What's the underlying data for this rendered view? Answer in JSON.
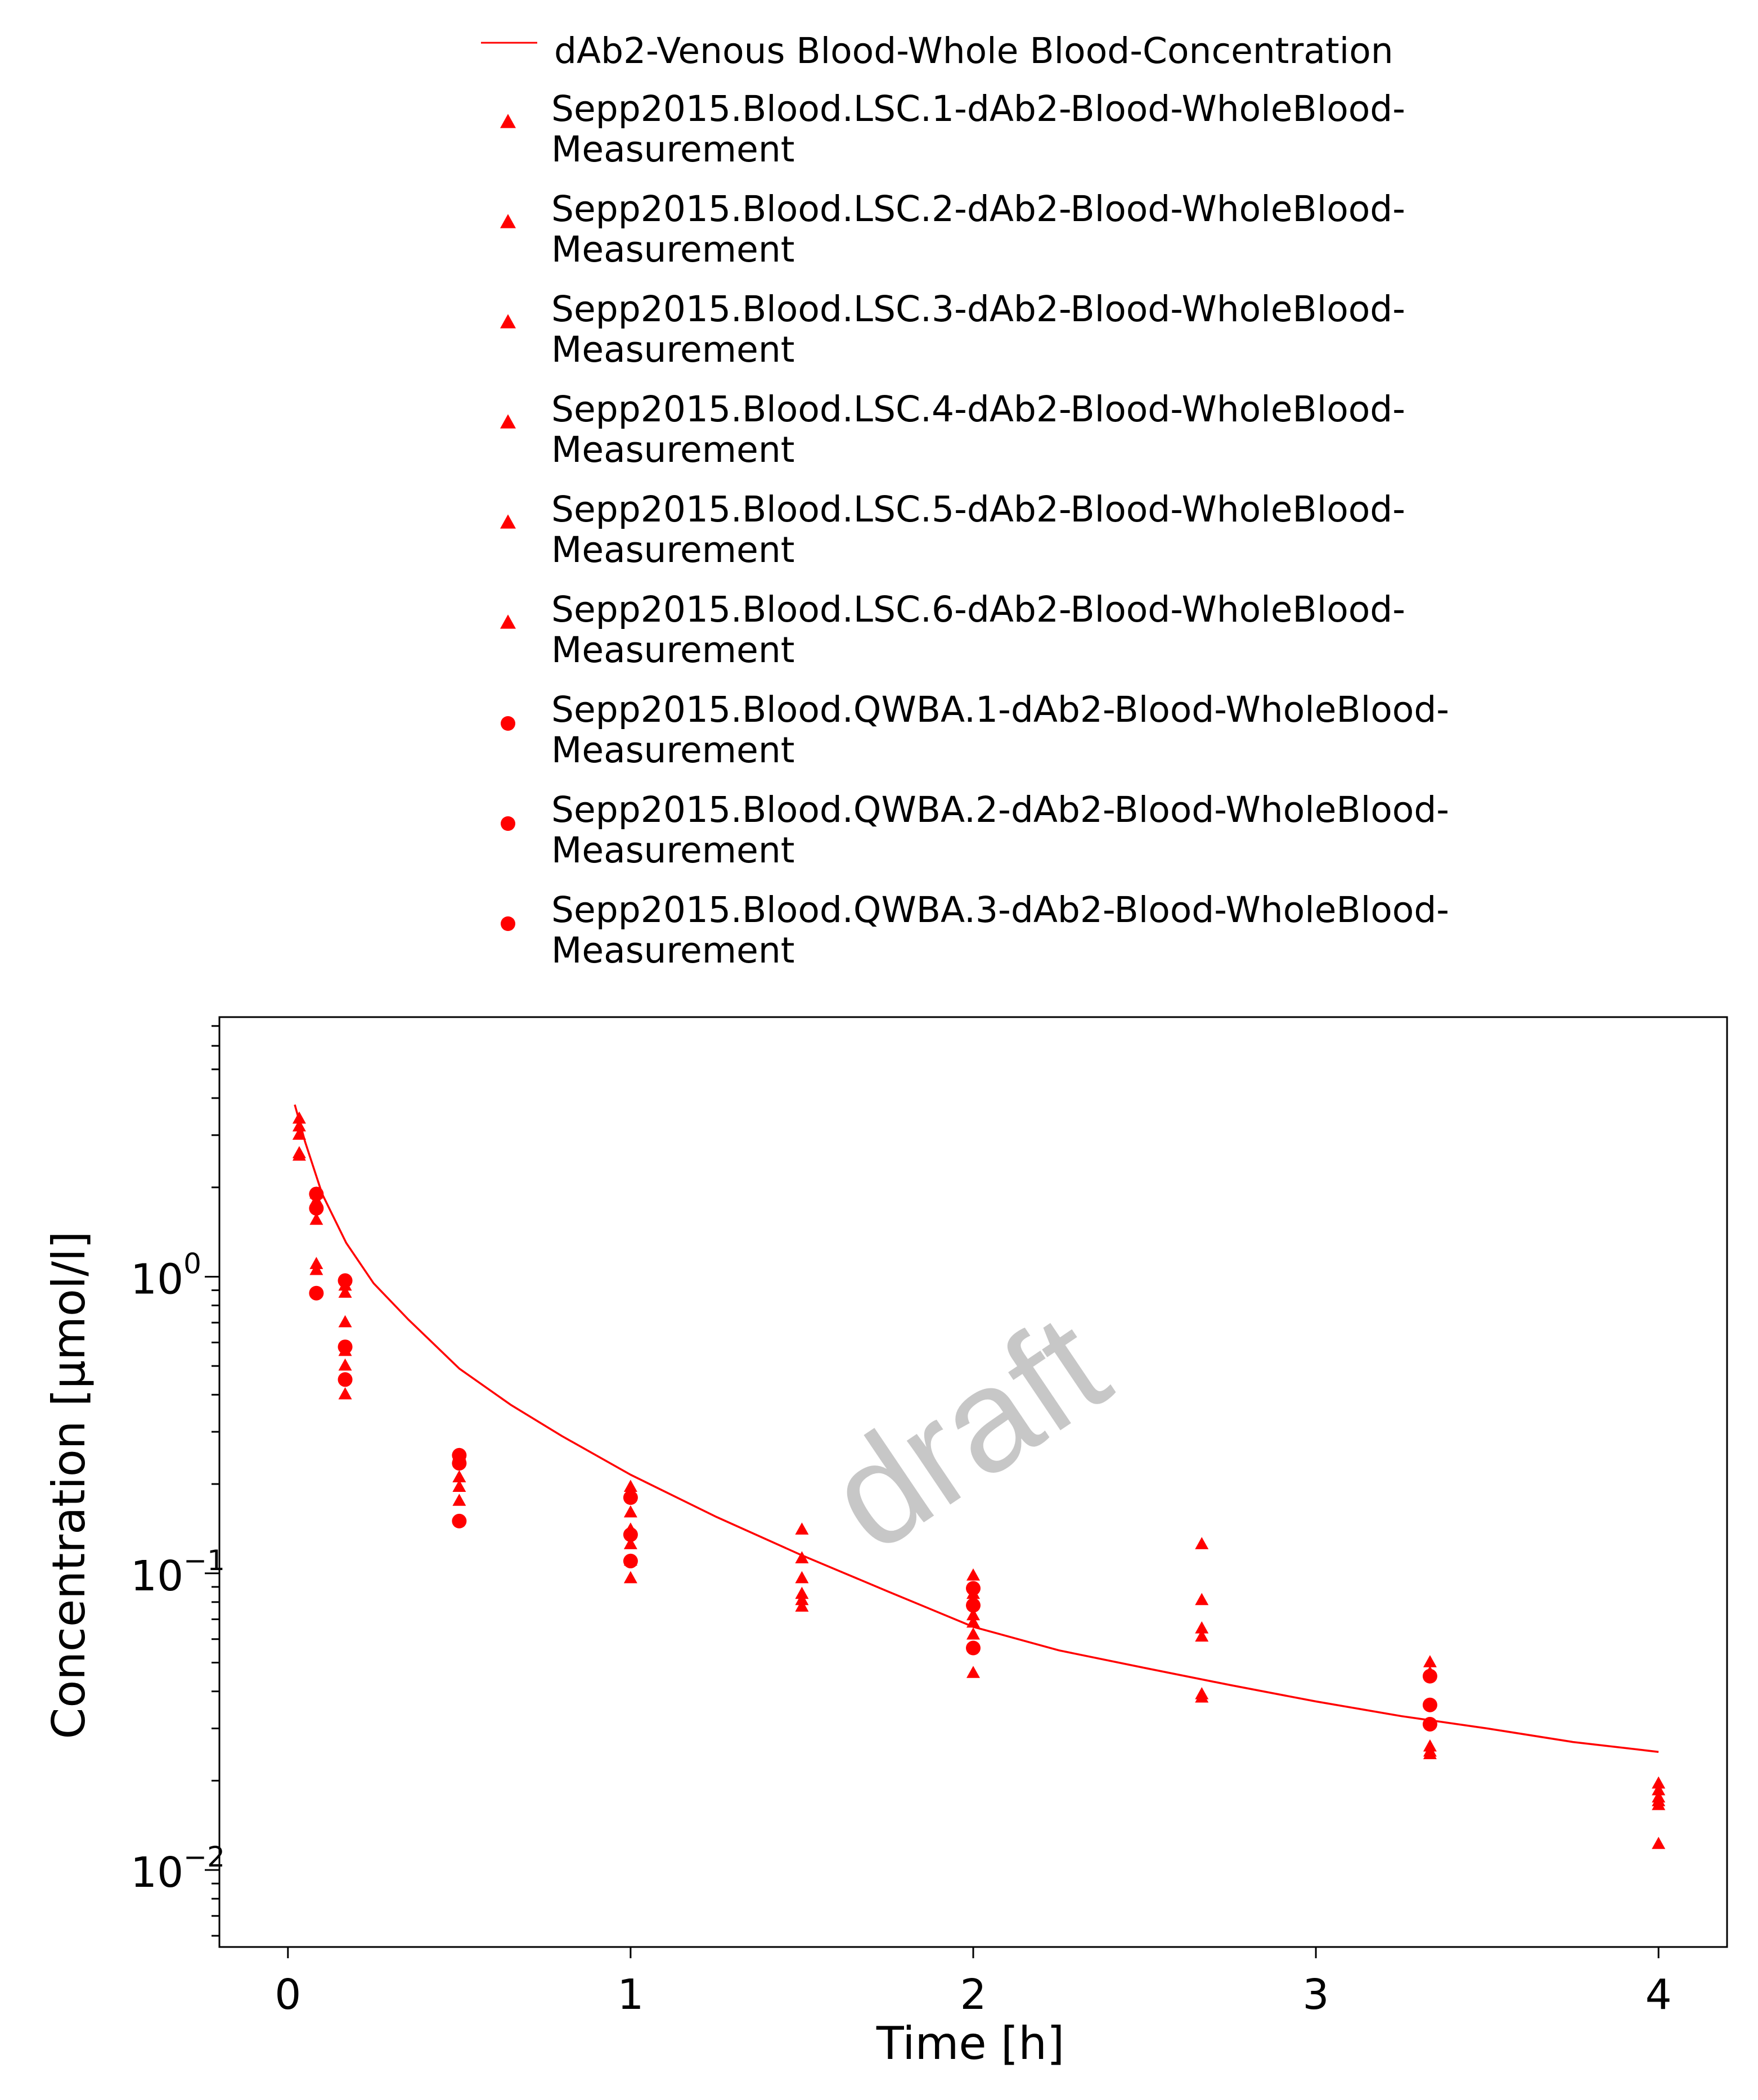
{
  "chart_data": {
    "type": "scatter",
    "title": "",
    "xlabel": "Time [h]",
    "ylabel": "Concentration [µmol/l]",
    "xlim": [
      -0.2,
      4.2
    ],
    "ylim": [
      0.0055,
      7.5
    ],
    "y_scale": "log",
    "x_ticks": [
      "0",
      "1",
      "2",
      "3",
      "4"
    ],
    "y_ticks": [
      {
        "base": "10",
        "exp": "0"
      },
      {
        "base": "10",
        "exp": "−1"
      },
      {
        "base": "10",
        "exp": "−2"
      }
    ],
    "grid": false,
    "legend_position": "top",
    "watermark": "draft",
    "color": "#ff0000",
    "series": [
      {
        "name": "dAb2-Venous Blood-Whole Blood-Concentration",
        "kind": "line",
        "x": [
          0.02,
          0.05,
          0.1,
          0.17,
          0.25,
          0.35,
          0.5,
          0.65,
          0.8,
          1.0,
          1.25,
          1.5,
          1.75,
          2.0,
          2.25,
          2.5,
          2.75,
          3.0,
          3.25,
          3.5,
          3.75,
          4.0
        ],
        "y": [
          3.8,
          2.85,
          1.9,
          1.3,
          0.95,
          0.72,
          0.49,
          0.37,
          0.29,
          0.215,
          0.155,
          0.115,
          0.087,
          0.066,
          0.055,
          0.048,
          0.042,
          0.037,
          0.033,
          0.03,
          0.027,
          0.025
        ]
      },
      {
        "name": "Sepp2015.Blood.LSC.1-dAb2-Blood-WholeBlood-Measurement",
        "kind": "triangle",
        "x": [
          0.033,
          0.083,
          0.167,
          0.5,
          1,
          1.5,
          2,
          2.667,
          3.333,
          4
        ],
        "y": [
          3.4,
          1.9,
          0.93,
          0.25,
          0.195,
          0.14,
          0.098,
          0.125,
          0.05,
          0.0195
        ]
      },
      {
        "name": "Sepp2015.Blood.LSC.2-dAb2-Blood-WholeBlood-Measurement",
        "kind": "triangle",
        "x": [
          0.033,
          0.083,
          0.167,
          0.5,
          1,
          1.5,
          2,
          2.667,
          3.333,
          4
        ],
        "y": [
          3.2,
          1.75,
          0.88,
          0.21,
          0.16,
          0.112,
          0.085,
          0.081,
          0.046,
          0.0185
        ]
      },
      {
        "name": "Sepp2015.Blood.LSC.3-dAb2-Blood-WholeBlood-Measurement",
        "kind": "triangle",
        "x": [
          0.033,
          0.083,
          0.167,
          0.5,
          1,
          1.5,
          2,
          2.667,
          3.333,
          4
        ],
        "y": [
          3.0,
          1.55,
          0.7,
          0.195,
          0.14,
          0.096,
          0.072,
          0.065,
          0.026,
          0.0175
        ]
      },
      {
        "name": "Sepp2015.Blood.LSC.4-dAb2-Blood-WholeBlood-Measurement",
        "kind": "triangle",
        "x": [
          0.033,
          0.083,
          0.167,
          0.5,
          1,
          1.5,
          2,
          2.667,
          3.333,
          4
        ],
        "y": [
          2.6,
          1.1,
          0.56,
          0.175,
          0.125,
          0.085,
          0.068,
          0.061,
          0.0245,
          0.017
        ]
      },
      {
        "name": "Sepp2015.Blood.LSC.5-dAb2-Blood-WholeBlood-Measurement",
        "kind": "triangle",
        "x": [
          0.033,
          0.083,
          0.167,
          0.5,
          1,
          1.5,
          2,
          2.667,
          3.333,
          4
        ],
        "y": [
          2.55,
          1.05,
          0.5,
          0.24,
          0.11,
          0.081,
          0.062,
          0.039,
          0.046,
          0.0165
        ]
      },
      {
        "name": "Sepp2015.Blood.LSC.6-dAb2-Blood-WholeBlood-Measurement",
        "kind": "triangle",
        "x": [
          0.033,
          0.083,
          0.167,
          0.5,
          1,
          1.5,
          2,
          2.667,
          3.333,
          4
        ],
        "y": [
          3.0,
          1.8,
          0.4,
          0.21,
          0.096,
          0.077,
          0.046,
          0.038,
          0.025,
          0.0122
        ]
      },
      {
        "name": "Sepp2015.Blood.QWBA.1-dAb2-Blood-WholeBlood-Measurement",
        "kind": "circle",
        "x": [
          0.083,
          0.167,
          0.5,
          1,
          2,
          3.333
        ],
        "y": [
          1.9,
          0.97,
          0.25,
          0.18,
          0.089,
          0.045
        ]
      },
      {
        "name": "Sepp2015.Blood.QWBA.2-dAb2-Blood-WholeBlood-Measurement",
        "kind": "circle",
        "x": [
          0.083,
          0.167,
          0.5,
          1,
          2,
          3.333
        ],
        "y": [
          1.7,
          0.58,
          0.235,
          0.135,
          0.078,
          0.036
        ]
      },
      {
        "name": "Sepp2015.Blood.QWBA.3-dAb2-Blood-WholeBlood-Measurement",
        "kind": "circle",
        "x": [
          0.083,
          0.167,
          0.5,
          1,
          2,
          3.333
        ],
        "y": [
          0.88,
          0.45,
          0.15,
          0.11,
          0.056,
          0.031
        ]
      }
    ]
  },
  "legend": {
    "entries": [
      {
        "line1": "dAb2-Venous Blood-Whole Blood-Concentration",
        "line2": ""
      },
      {
        "line1": "Sepp2015.Blood.LSC.1-dAb2-Blood-WholeBlood-",
        "line2": "Measurement"
      },
      {
        "line1": "Sepp2015.Blood.LSC.2-dAb2-Blood-WholeBlood-",
        "line2": "Measurement"
      },
      {
        "line1": "Sepp2015.Blood.LSC.3-dAb2-Blood-WholeBlood-",
        "line2": "Measurement"
      },
      {
        "line1": "Sepp2015.Blood.LSC.4-dAb2-Blood-WholeBlood-",
        "line2": "Measurement"
      },
      {
        "line1": "Sepp2015.Blood.LSC.5-dAb2-Blood-WholeBlood-",
        "line2": "Measurement"
      },
      {
        "line1": "Sepp2015.Blood.LSC.6-dAb2-Blood-WholeBlood-",
        "line2": "Measurement"
      },
      {
        "line1": "Sepp2015.Blood.QWBA.1-dAb2-Blood-WholeBlood-",
        "line2": "Measurement"
      },
      {
        "line1": "Sepp2015.Blood.QWBA.2-dAb2-Blood-WholeBlood-",
        "line2": "Measurement"
      },
      {
        "line1": "Sepp2015.Blood.QWBA.3-dAb2-Blood-WholeBlood-",
        "line2": "Measurement"
      }
    ]
  }
}
